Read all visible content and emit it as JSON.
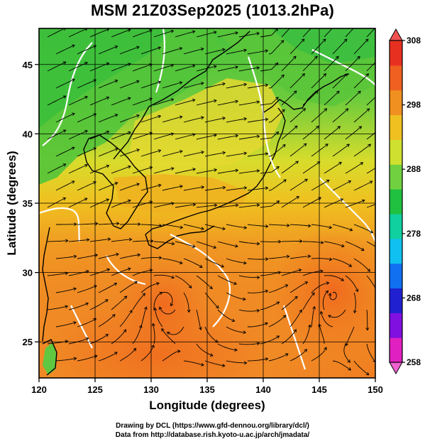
{
  "title": "MSM 21Z03Sep2025 (1013.2hPa)",
  "xaxis": {
    "label": "Longitude (degrees)",
    "range": [
      120,
      150
    ],
    "ticks": [
      "120",
      "125",
      "130",
      "135",
      "140",
      "145",
      "150"
    ]
  },
  "yaxis": {
    "label": "Latitude  (degrees)",
    "range": [
      22.4,
      47.6
    ],
    "ticks": [
      "25",
      "30",
      "35",
      "40",
      "45"
    ]
  },
  "colorbar": {
    "range": [
      258,
      308
    ],
    "ticks": [
      "258",
      "268",
      "278",
      "288",
      "298",
      "308"
    ],
    "colors": [
      "#e020c0",
      "#8010e0",
      "#2020d0",
      "#1070f0",
      "#10c0f0",
      "#10d0a0",
      "#20c040",
      "#70d040",
      "#d0e030",
      "#f0c020",
      "#f09020",
      "#f06020",
      "#e83020"
    ]
  },
  "credits": {
    "line1": "Drawing by DCL (https://www.gfd-dennou.org/library/dcl/)",
    "line2": "Data from http://database.rish.kyoto-u.ac.jp/arch/jmadata/"
  },
  "icons": {
    "plot": "temperature-map-with-streamlines",
    "bar": "colorbar"
  }
}
